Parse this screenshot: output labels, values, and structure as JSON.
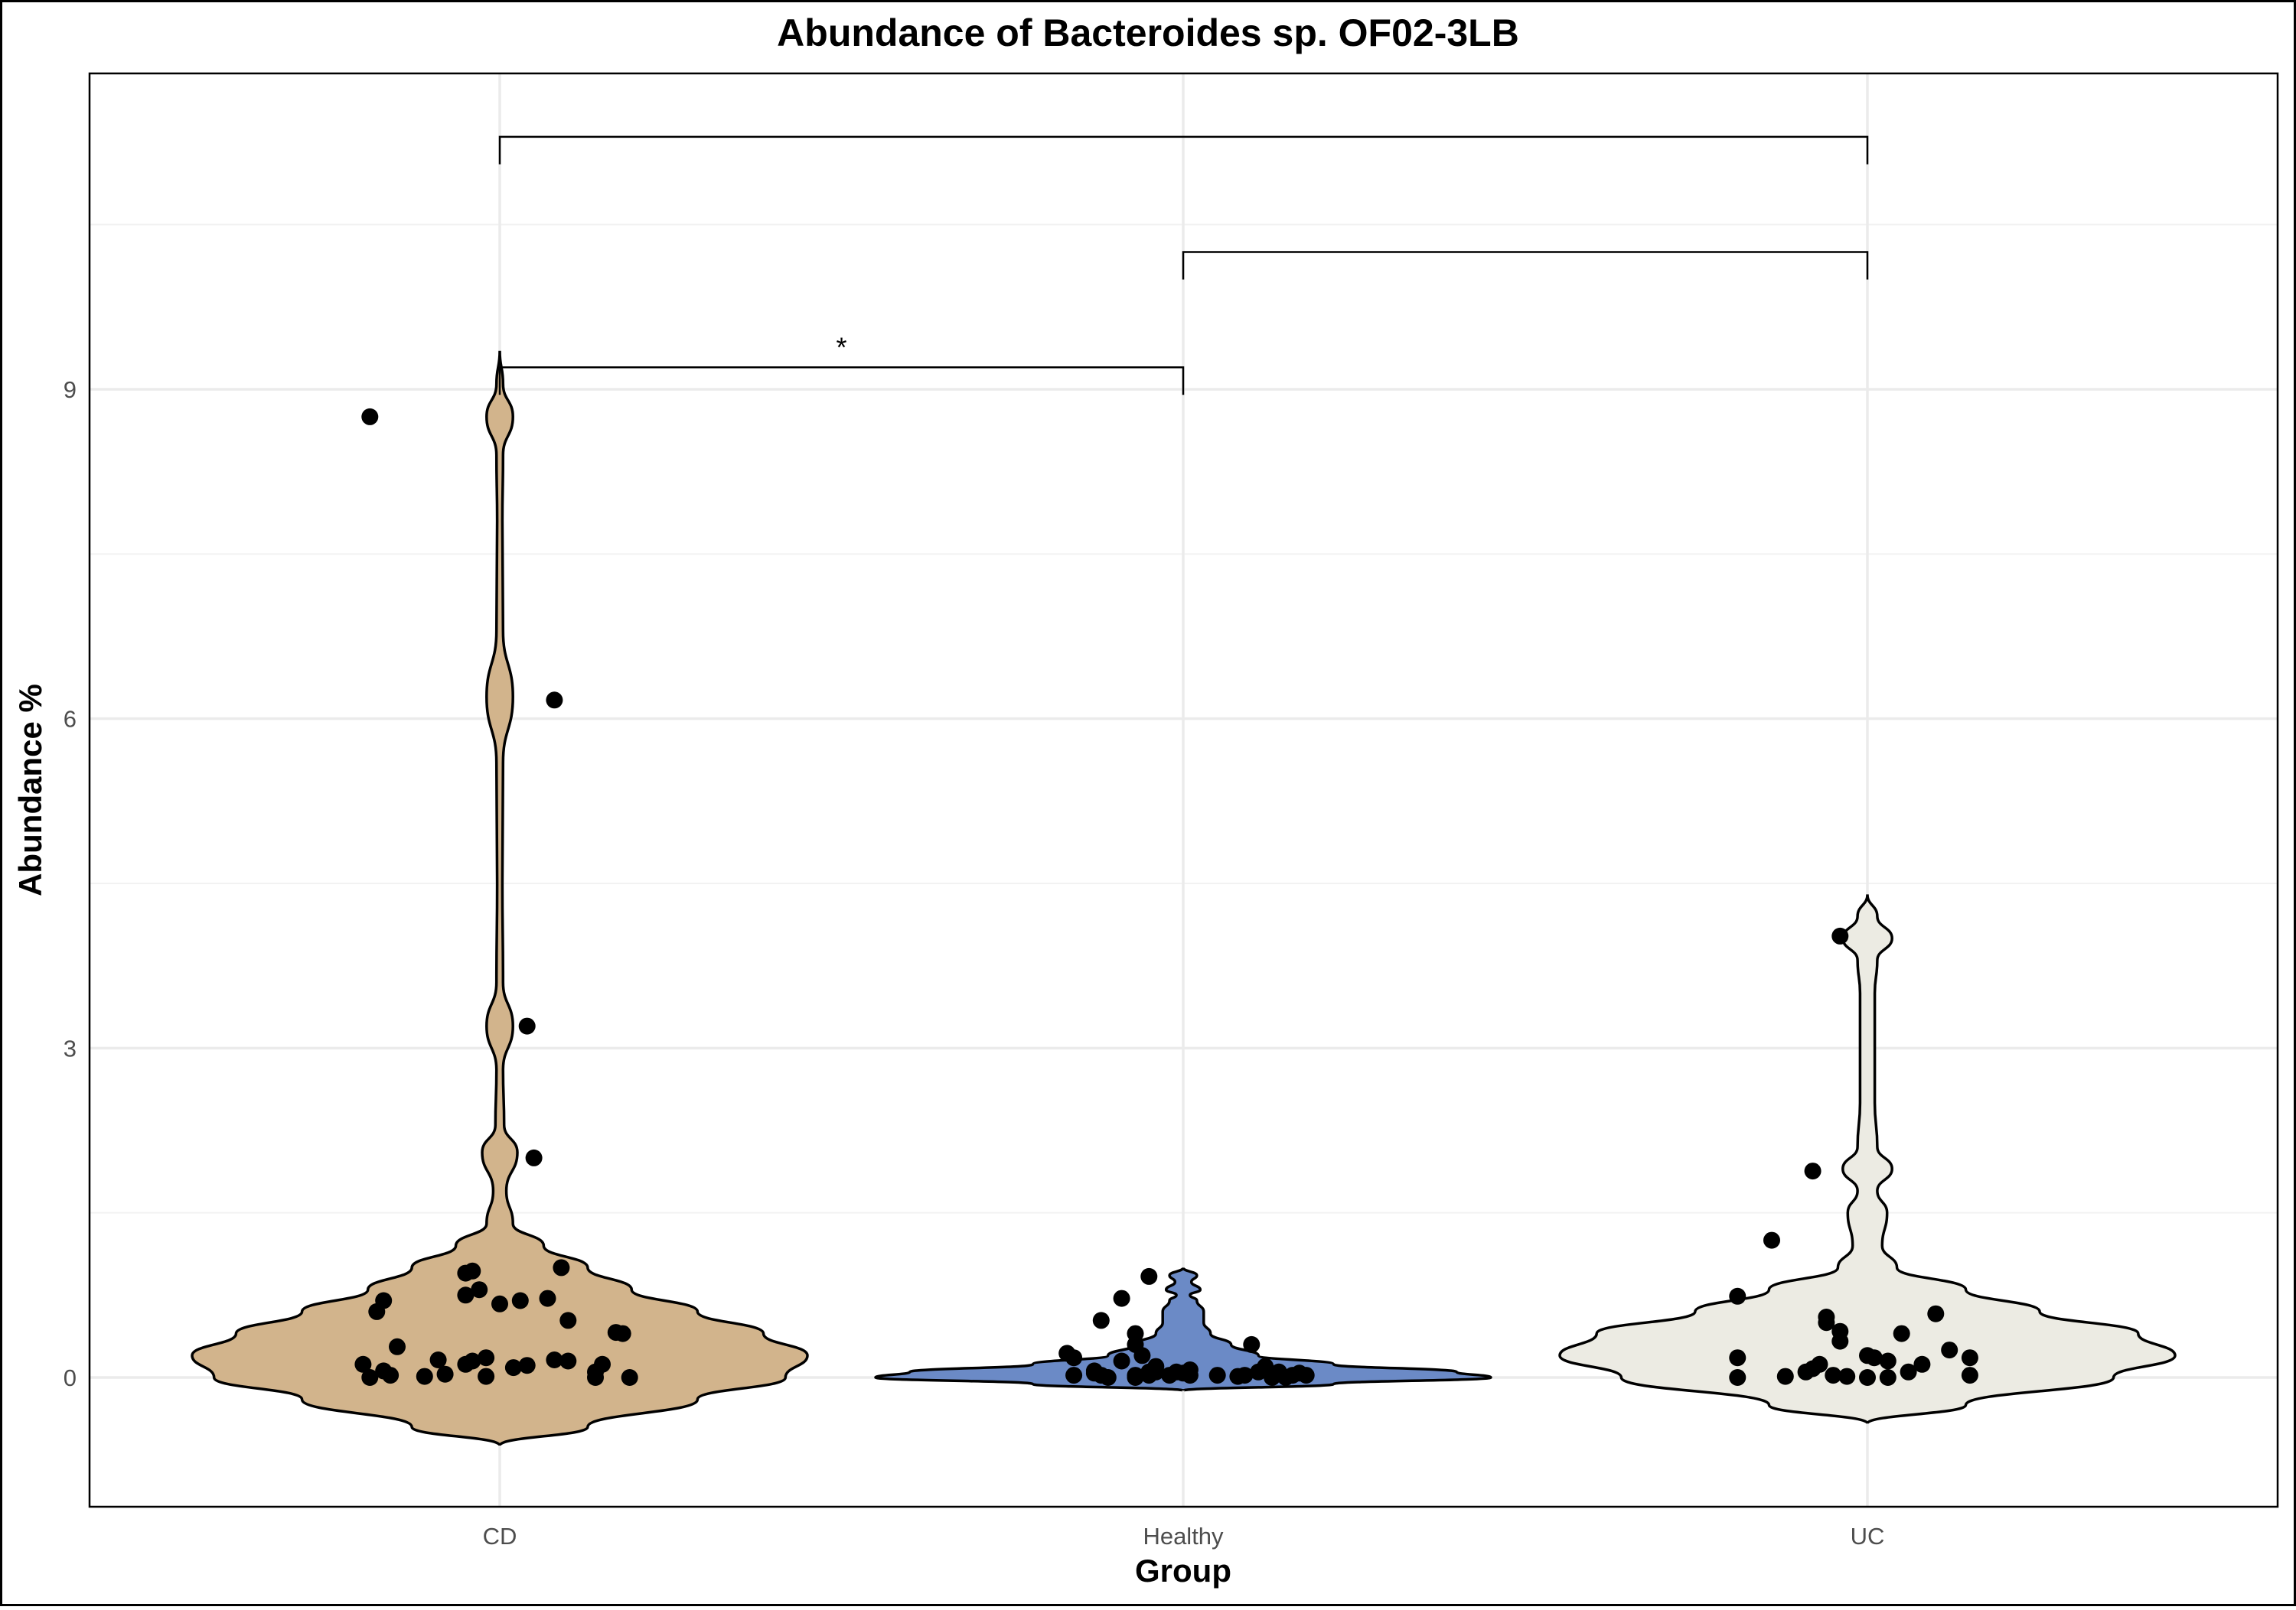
{
  "chart_data": {
    "type": "violin",
    "title": "Abundance of Bacteroides sp. OF02-3LB",
    "xlabel": "Group",
    "ylabel": "Abundance %",
    "ylim": [
      -1.2,
      11.8
    ],
    "yticks": [
      0,
      3,
      6,
      9
    ],
    "ytick_labels": [
      "0",
      "3",
      "6",
      "9"
    ],
    "grid": true,
    "legend": "none",
    "categories": [
      "CD",
      "Healthy",
      "UC"
    ],
    "groups": [
      {
        "name": "CD",
        "color": "#D2B48C",
        "points": [
          [
            -0.19,
            8.75
          ],
          [
            0.08,
            6.17
          ],
          [
            0.04,
            3.2
          ],
          [
            0.05,
            2.0
          ],
          [
            0.09,
            1.0
          ],
          [
            -0.04,
            0.97
          ],
          [
            -0.05,
            0.95
          ],
          [
            -0.03,
            0.8
          ],
          [
            -0.05,
            0.75
          ],
          [
            0.07,
            0.72
          ],
          [
            -0.17,
            0.7
          ],
          [
            0.03,
            0.7
          ],
          [
            0.0,
            0.67
          ],
          [
            -0.18,
            0.6
          ],
          [
            0.1,
            0.52
          ],
          [
            0.17,
            0.41
          ],
          [
            0.18,
            0.4
          ],
          [
            -0.15,
            0.28
          ],
          [
            -0.02,
            0.18
          ],
          [
            -0.09,
            0.16
          ],
          [
            -0.04,
            0.15
          ],
          [
            0.08,
            0.16
          ],
          [
            0.1,
            0.15
          ],
          [
            -0.05,
            0.12
          ],
          [
            0.15,
            0.12
          ],
          [
            -0.2,
            0.12
          ],
          [
            0.04,
            0.11
          ],
          [
            0.02,
            0.09
          ],
          [
            -0.17,
            0.06
          ],
          [
            0.14,
            0.05
          ],
          [
            -0.08,
            0.03
          ],
          [
            -0.16,
            0.02
          ],
          [
            -0.11,
            0.01
          ],
          [
            -0.02,
            0.01
          ],
          [
            0.14,
            0.0
          ],
          [
            -0.19,
            0.0
          ],
          [
            0.19,
            0.0
          ]
        ],
        "violin": [
          [
            -0.62,
            0.0
          ],
          [
            -0.45,
            0.04
          ],
          [
            -0.2,
            0.09
          ],
          [
            0.0,
            0.13
          ],
          [
            0.2,
            0.14
          ],
          [
            0.4,
            0.12
          ],
          [
            0.6,
            0.09
          ],
          [
            0.8,
            0.06
          ],
          [
            1.0,
            0.04
          ],
          [
            1.2,
            0.02
          ],
          [
            1.4,
            0.006
          ],
          [
            1.7,
            0.003
          ],
          [
            2.05,
            0.008
          ],
          [
            2.3,
            0.002
          ],
          [
            2.8,
            0.0015
          ],
          [
            3.2,
            0.006
          ],
          [
            3.6,
            0.0015
          ],
          [
            4.5,
            0.0012
          ],
          [
            5.6,
            0.0015
          ],
          [
            6.2,
            0.006
          ],
          [
            6.8,
            0.0015
          ],
          [
            7.8,
            0.0012
          ],
          [
            8.4,
            0.0015
          ],
          [
            8.75,
            0.006
          ],
          [
            9.05,
            0.0015
          ],
          [
            9.35,
            0.0
          ]
        ]
      },
      {
        "name": "Healthy",
        "color": "#6B8AC6",
        "points": [
          [
            -0.17,
            0.22
          ],
          [
            -0.16,
            0.18
          ],
          [
            -0.16,
            0.02
          ],
          [
            -0.13,
            0.06
          ],
          [
            -0.12,
            0.52
          ],
          [
            -0.09,
            0.72
          ],
          [
            -0.13,
            0.04
          ],
          [
            -0.12,
            0.02
          ],
          [
            -0.11,
            0.0
          ],
          [
            -0.09,
            0.15
          ],
          [
            -0.07,
            0.02
          ],
          [
            -0.07,
            0.0
          ],
          [
            -0.05,
            0.05
          ],
          [
            -0.07,
            0.4
          ],
          [
            -0.07,
            0.3
          ],
          [
            -0.06,
            0.2
          ],
          [
            -0.05,
            0.92
          ],
          [
            -0.04,
            0.05
          ],
          [
            -0.05,
            0.02
          ],
          [
            -0.04,
            0.1
          ],
          [
            -0.02,
            0.02
          ],
          [
            -0.01,
            0.05
          ],
          [
            0.0,
            0.04
          ],
          [
            0.01,
            0.07
          ],
          [
            0.01,
            0.02
          ],
          [
            0.05,
            0.02
          ],
          [
            0.08,
            0.01
          ],
          [
            0.1,
            0.3
          ],
          [
            0.09,
            0.02
          ],
          [
            0.11,
            0.05
          ],
          [
            0.12,
            0.1
          ],
          [
            0.13,
            0.0
          ],
          [
            0.14,
            0.05
          ],
          [
            0.15,
            0.0
          ],
          [
            0.16,
            0.02
          ],
          [
            0.17,
            0.04
          ],
          [
            0.18,
            0.02
          ]
        ],
        "violin": [
          [
            -0.12,
            0.0
          ],
          [
            -0.06,
            0.22
          ],
          [
            0.0,
            0.45
          ],
          [
            0.05,
            0.4
          ],
          [
            0.12,
            0.22
          ],
          [
            0.2,
            0.11
          ],
          [
            0.3,
            0.07
          ],
          [
            0.4,
            0.04
          ],
          [
            0.5,
            0.03
          ],
          [
            0.6,
            0.03
          ],
          [
            0.7,
            0.02
          ],
          [
            0.75,
            0.01
          ],
          [
            0.8,
            0.025
          ],
          [
            0.87,
            0.012
          ],
          [
            0.93,
            0.02
          ],
          [
            1.0,
            0.0
          ]
        ]
      },
      {
        "name": "UC",
        "color": "#ECEBE3",
        "points": [
          [
            -0.04,
            4.02
          ],
          [
            -0.08,
            1.88
          ],
          [
            -0.14,
            1.25
          ],
          [
            -0.19,
            0.74
          ],
          [
            0.1,
            0.58
          ],
          [
            -0.06,
            0.55
          ],
          [
            -0.06,
            0.5
          ],
          [
            -0.04,
            0.42
          ],
          [
            0.05,
            0.4
          ],
          [
            -0.04,
            0.33
          ],
          [
            0.12,
            0.25
          ],
          [
            0.15,
            0.18
          ],
          [
            0.0,
            0.2
          ],
          [
            0.01,
            0.18
          ],
          [
            -0.19,
            0.18
          ],
          [
            0.03,
            0.15
          ],
          [
            0.08,
            0.12
          ],
          [
            -0.07,
            0.12
          ],
          [
            -0.08,
            0.08
          ],
          [
            -0.09,
            0.05
          ],
          [
            0.06,
            0.05
          ],
          [
            -0.05,
            0.02
          ],
          [
            -0.03,
            0.01
          ],
          [
            0.03,
            0.0
          ],
          [
            0.15,
            0.02
          ],
          [
            -0.12,
            0.01
          ],
          [
            -0.19,
            0.0
          ],
          [
            0.0,
            0.0
          ]
        ],
        "violin": [
          [
            -0.42,
            0.0
          ],
          [
            -0.25,
            0.04
          ],
          [
            0.0,
            0.1
          ],
          [
            0.2,
            0.125
          ],
          [
            0.4,
            0.11
          ],
          [
            0.6,
            0.07
          ],
          [
            0.8,
            0.04
          ],
          [
            1.0,
            0.012
          ],
          [
            1.2,
            0.006
          ],
          [
            1.5,
            0.008
          ],
          [
            1.7,
            0.004
          ],
          [
            1.9,
            0.01
          ],
          [
            2.1,
            0.004
          ],
          [
            2.5,
            0.003
          ],
          [
            3.5,
            0.003
          ],
          [
            3.8,
            0.004
          ],
          [
            4.0,
            0.01
          ],
          [
            4.2,
            0.004
          ],
          [
            4.4,
            0.0
          ]
        ]
      }
    ],
    "comparisons": [
      {
        "from": "CD",
        "to": "Healthy",
        "y": 9.2,
        "label": "*"
      },
      {
        "from": "Healthy",
        "to": "UC",
        "y": 10.25,
        "label": ""
      },
      {
        "from": "CD",
        "to": "UC",
        "y": 11.3,
        "label": ""
      }
    ]
  }
}
